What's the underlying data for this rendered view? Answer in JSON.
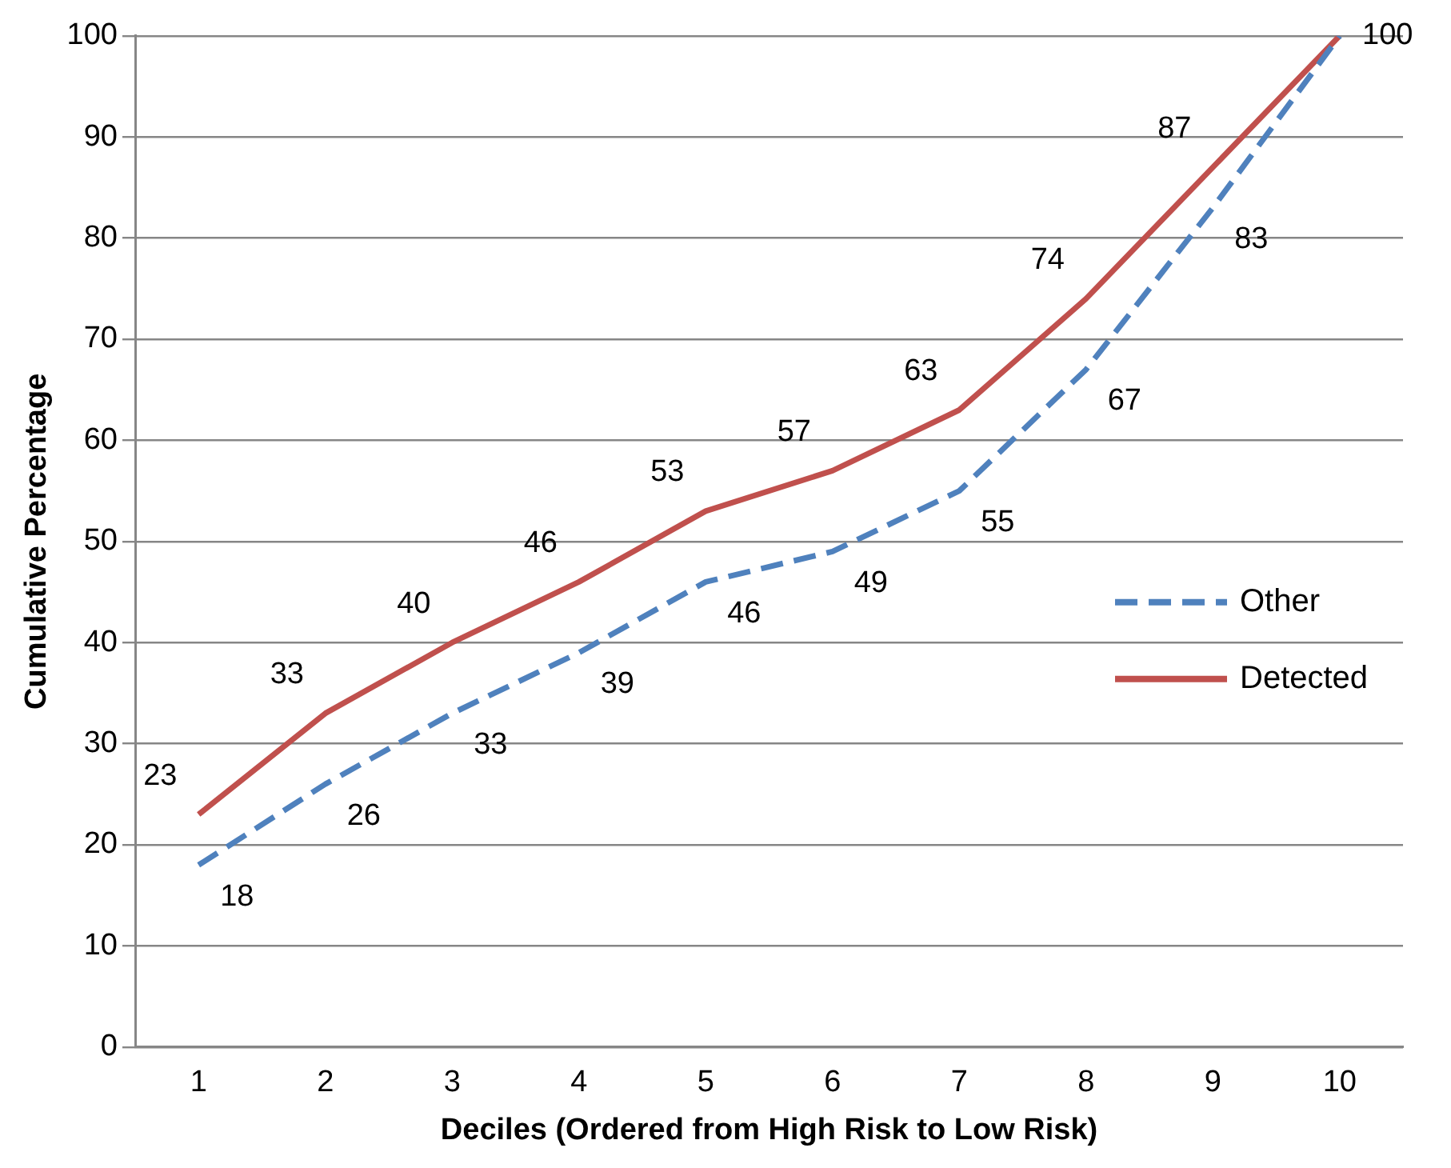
{
  "chart_data": {
    "type": "line",
    "xlabel": "Deciles (Ordered from High Risk to Low Risk)",
    "ylabel": "Cumulative Percentage",
    "categories": [
      "1",
      "2",
      "3",
      "4",
      "5",
      "6",
      "7",
      "8",
      "9",
      "10"
    ],
    "series": [
      {
        "name": "Other",
        "color": "#4f81bd",
        "line_style": "dashed",
        "values": [
          18,
          26,
          33,
          39,
          46,
          49,
          55,
          67,
          83,
          100
        ],
        "value_labels": [
          "18",
          "26",
          "33",
          "39",
          "46",
          "49",
          "55",
          "67",
          "83",
          null
        ]
      },
      {
        "name": "Detected",
        "color": "#c0504d",
        "line_style": "solid",
        "values": [
          23,
          33,
          40,
          46,
          53,
          57,
          63,
          74,
          87,
          100
        ],
        "value_labels": [
          "23",
          "33",
          "40",
          "46",
          "53",
          "57",
          "63",
          "74",
          "87",
          "100"
        ]
      }
    ],
    "ylim": [
      0,
      100
    ],
    "yticks": [
      0,
      10,
      20,
      30,
      40,
      50,
      60,
      70,
      80,
      90,
      100
    ],
    "grid": "y",
    "legend": "right",
    "marker": "none"
  }
}
